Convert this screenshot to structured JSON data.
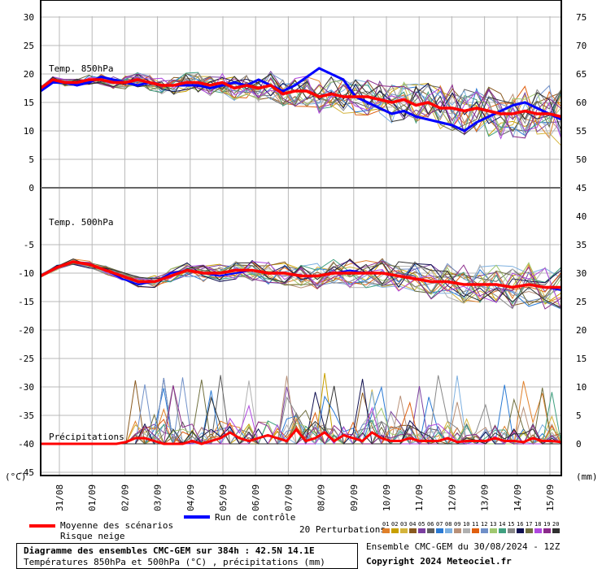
{
  "chart_data": {
    "type": "line",
    "x_start_label": "31/08",
    "x_labels": [
      "31/08",
      "01/09",
      "02/09",
      "03/09",
      "04/09",
      "05/09",
      "06/09",
      "07/09",
      "08/09",
      "09/09",
      "10/09",
      "11/09",
      "12/09",
      "13/09",
      "14/09",
      "15/09"
    ],
    "panels": {
      "t850": {
        "title": "Temp. 850hPa",
        "left_ticks": [
          "30",
          "25",
          "20",
          "15",
          "10",
          "5",
          "0"
        ],
        "right_ticks": [
          "75",
          "70",
          "65",
          "60",
          "55",
          "50"
        ],
        "ylim": [
          0,
          32
        ],
        "mean": [
          17.5,
          19,
          18.5,
          18.5,
          19,
          19,
          18.5,
          18.5,
          19,
          18.5,
          18,
          18,
          18.5,
          18.5,
          18,
          18.5,
          17.5,
          18,
          17.5,
          18,
          16.5,
          17,
          17,
          16,
          16.5,
          16,
          16,
          16,
          15.5,
          15,
          15.5,
          14.5,
          15,
          14,
          14,
          13.5,
          14,
          13.5,
          13,
          13,
          13.5,
          13,
          13,
          12.5
        ],
        "control": [
          17,
          18.5,
          18.5,
          18,
          18.5,
          19.5,
          19,
          18.5,
          18,
          18.5,
          18,
          18,
          18,
          18,
          17.5,
          18,
          18.5,
          18,
          19,
          18,
          17,
          18,
          19.5,
          21,
          20,
          19,
          16,
          15,
          14,
          13,
          13.5,
          12.5,
          12,
          11.5,
          11,
          10,
          11.5,
          12.5,
          13.5,
          14.5,
          15,
          14,
          13,
          12
        ]
      },
      "t500": {
        "title": "Temp. 500hPa",
        "left_ticks": [
          "-5",
          "-10",
          "-15",
          "-20",
          "-25",
          "-30",
          "-35",
          "-40",
          "-45"
        ],
        "right_ticks": [
          "45",
          "40",
          "35",
          "30",
          "25",
          "20",
          "15",
          "10",
          "5",
          "0"
        ],
        "ylim": [
          -47,
          -2
        ],
        "mean": [
          -10.5,
          -9,
          -8,
          -8.5,
          -9.5,
          -10.5,
          -11.5,
          -11.5,
          -10.5,
          -9.5,
          -10,
          -10,
          -9.5,
          -9.5,
          -10,
          -10,
          -10.5,
          -10.5,
          -10,
          -10,
          -10,
          -10,
          -10.5,
          -11,
          -11.5,
          -11.5,
          -12,
          -12,
          -12,
          -12.5,
          -12,
          -12.5,
          -12.5
        ],
        "control": [
          -10.5,
          -9,
          -8,
          -8.5,
          -9.5,
          -11,
          -12,
          -11.5,
          -10,
          -9.5,
          -10,
          -10.5,
          -10,
          -9.5,
          -10,
          -10,
          -10.5,
          -10.5,
          -10,
          -9.5,
          -10,
          -10,
          -10.5,
          -11,
          -11.5,
          -11.5,
          -12,
          -12,
          -12,
          -12.5,
          -12,
          -12.5,
          -13
        ]
      },
      "precip": {
        "title": "Précipitations",
        "mean_mm": [
          0,
          0,
          0,
          0,
          0,
          0,
          0,
          0,
          0,
          0.3,
          1,
          1,
          0.5,
          0,
          0,
          0,
          0.5,
          0,
          0.5,
          1,
          2,
          1,
          0.5,
          1,
          1.5,
          1,
          0.5,
          2.5,
          0.5,
          1,
          2,
          0.5,
          1.5,
          1,
          0.5,
          2,
          1,
          0.5,
          0.5,
          1,
          0.5,
          0.5,
          0.5,
          1,
          0.3,
          0.5,
          0.5,
          0.5,
          1,
          0.5,
          0.5,
          0.3,
          1,
          0.5,
          0.5,
          0.3
        ],
        "unit": "mm"
      }
    },
    "members_count": 20,
    "member_colors": [
      "#e0802a",
      "#c8a000",
      "#d4b43c",
      "#8a5a20",
      "#7b3fa0",
      "#606060",
      "#2a7ad4",
      "#7db0e0",
      "#b89078",
      "#b0b0b0",
      "#e06010",
      "#7090c8",
      "#a0c870",
      "#40a080",
      "#888888",
      "#101050",
      "#707040",
      "#b048e0",
      "#8a2a8a",
      "#303030"
    ],
    "member_labels": [
      "01",
      "02",
      "03",
      "04",
      "05",
      "06",
      "07",
      "08",
      "09",
      "10",
      "11",
      "12",
      "13",
      "14",
      "15",
      "16",
      "17",
      "18",
      "19",
      "20"
    ],
    "left_unit": "(°C)",
    "right_unit": "(mm)"
  },
  "legend": {
    "mean_label": "Moyenne des scénarios",
    "snow_label": "Risque neige",
    "control_label": "Run de contrôle",
    "perturbations_label": "20 Perturbations",
    "mean_color": "#ff0000",
    "control_color": "#0000ff"
  },
  "footer": {
    "title": "Diagramme des ensembles CMC-GEM sur 384h : 42.5N 14.1E",
    "subtitle": "Températures 850hPa et 500hPa (°C) , précipitations (mm)",
    "run": "Ensemble CMC-GEM du 30/08/2024 - 12Z",
    "copyright": "Copyright 2024 Meteociel.fr"
  }
}
